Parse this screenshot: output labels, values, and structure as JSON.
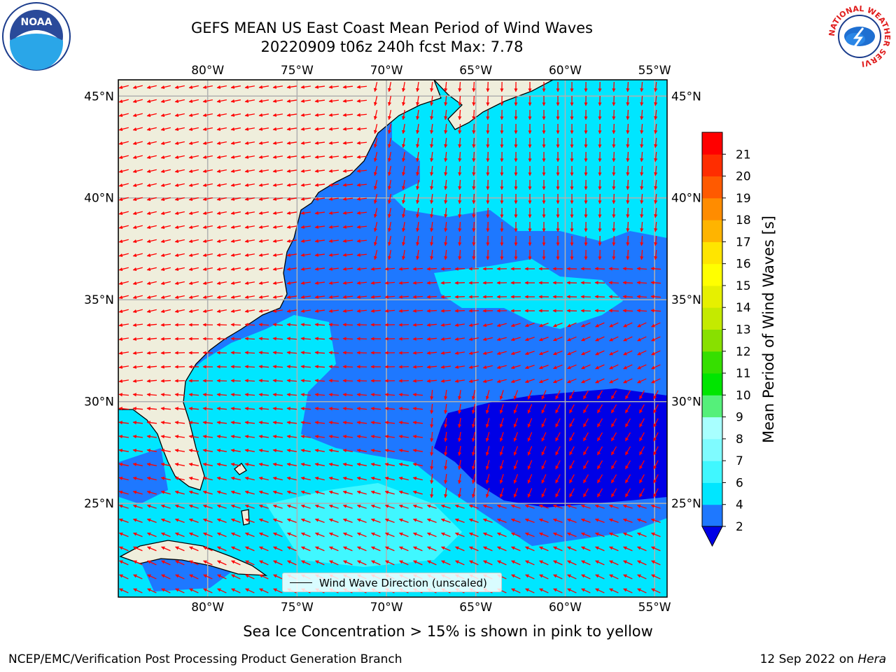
{
  "header": {
    "title_line1": "GEFS MEAN US East Coast Mean Period of Wind Waves",
    "title_line2": "20220909 t06z 240h fcst   Max: 7.78",
    "left_logo": "NOAA",
    "right_logo": "NATIONAL WEATHER SERVICE"
  },
  "map": {
    "lon_ticks": [
      "80°W",
      "75°W",
      "70°W",
      "65°W",
      "60°W",
      "55°W"
    ],
    "lon_values": [
      -80,
      -75,
      -70,
      -65,
      -60,
      -55
    ],
    "lat_ticks": [
      "45°N",
      "40°N",
      "35°N",
      "30°N",
      "25°N"
    ],
    "lat_values": [
      45,
      40,
      35,
      30,
      25
    ],
    "lon_range": [
      -85,
      -54.3
    ],
    "lat_range": [
      20.4,
      45.8
    ],
    "land_color": "#efeedc",
    "grid_color": "#b0b0b0",
    "arrow_color": "#ff0000",
    "legend_label": "Wind Wave Direction (unscaled)"
  },
  "colorbar": {
    "label": "Mean Period of Wind Waves [s]",
    "ticks": [
      "2",
      "4",
      "6",
      "7",
      "8",
      "9",
      "10",
      "11",
      "12",
      "13",
      "14",
      "15",
      "16",
      "17",
      "18",
      "19",
      "20",
      "21"
    ],
    "colors": [
      "#1e78ff",
      "#00e6ff",
      "#40f7ff",
      "#7ffbff",
      "#a8ffff",
      "#55f07a",
      "#00e500",
      "#36df00",
      "#88e000",
      "#c4ea00",
      "#e6f000",
      "#ffff00",
      "#ffe500",
      "#ffb400",
      "#ff8c00",
      "#ff5a00",
      "#ff2d00",
      "#ff0000"
    ],
    "under_color": "#0000e6"
  },
  "footer": {
    "note": "Sea Ice Concentration > 15% is shown in pink to yellow",
    "left": "NCEP/EMC/Verification Post Processing Product Generation Branch",
    "right_prefix": "12 Sep 2022 on ",
    "right_host": "Hera"
  }
}
